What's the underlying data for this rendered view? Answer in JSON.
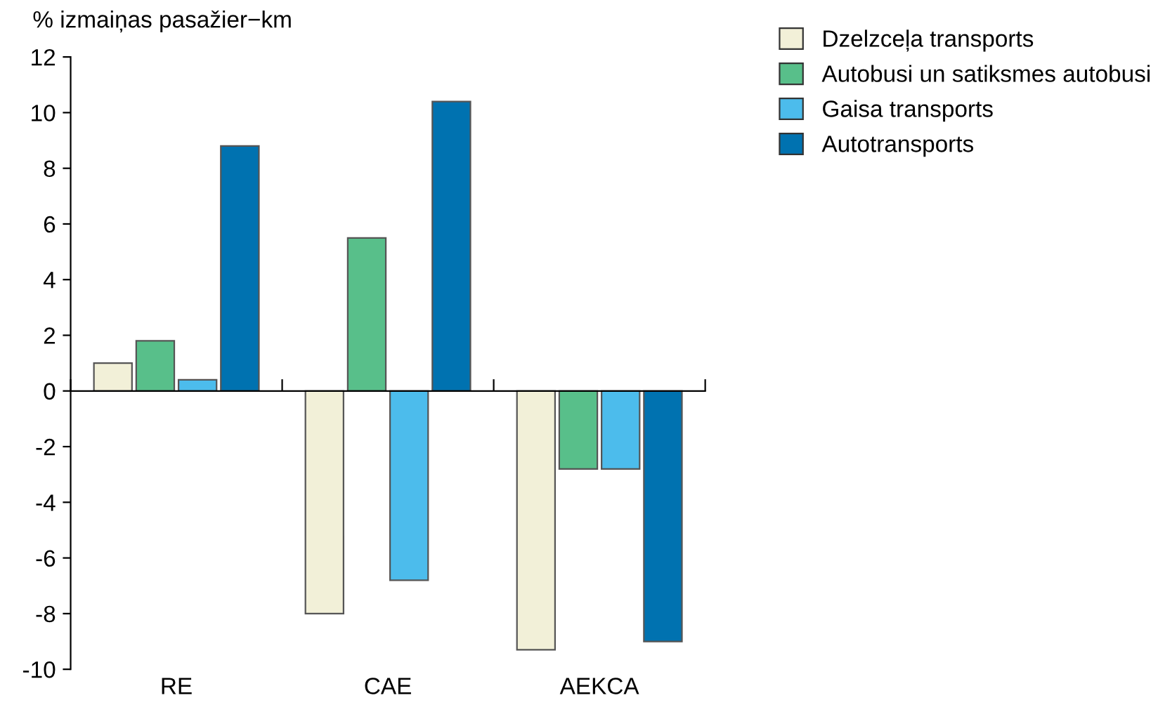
{
  "chart_data": {
    "type": "bar",
    "ylabel": "% izmaiņas pasažier−km",
    "categories": [
      "RE",
      "CAE",
      "AEKCA"
    ],
    "series": [
      {
        "name": "Dzelzceļa transports",
        "color": "#f2f0d8",
        "values": [
          1.0,
          -8.0,
          -9.3
        ]
      },
      {
        "name": "Autobusi un satiksmes autobusi",
        "color": "#58bf8a",
        "values": [
          1.8,
          5.5,
          -2.8
        ]
      },
      {
        "name": "Gaisa transports",
        "color": "#4cbcec",
        "values": [
          0.4,
          -6.8,
          -2.8
        ]
      },
      {
        "name": "Autotransports",
        "color": "#0072b0",
        "values": [
          8.8,
          10.4,
          -9.0
        ]
      }
    ],
    "ylim": [
      -10,
      12
    ],
    "yticks": [
      -10,
      -8,
      -6,
      -4,
      -2,
      0,
      2,
      4,
      6,
      8,
      10,
      12
    ],
    "legend": "top right"
  }
}
